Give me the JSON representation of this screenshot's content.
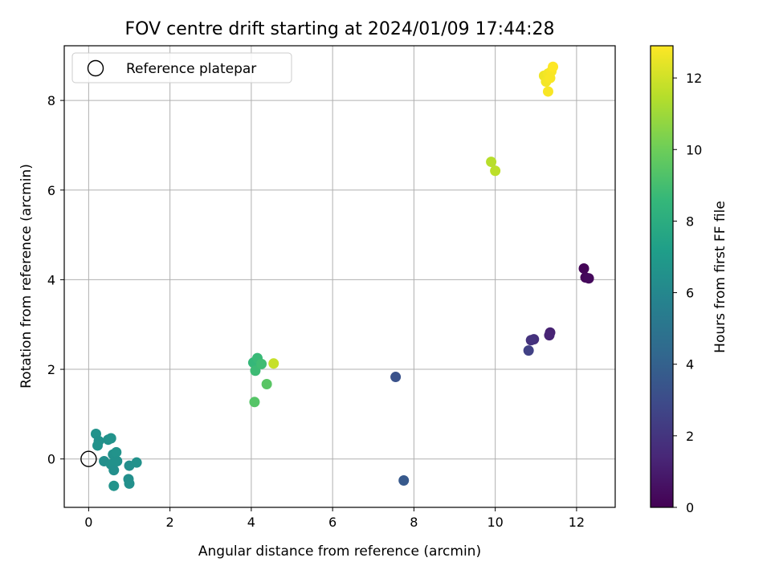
{
  "chart_data": {
    "type": "scatter",
    "title": "FOV centre drift starting at 2024/01/09 17:44:28",
    "xlabel": "Angular distance from reference (arcmin)",
    "ylabel": "Rotation from reference (arcmin)",
    "xlim": [
      -0.6,
      12.95
    ],
    "ylim": [
      -1.08,
      9.22
    ],
    "xticks": [
      0,
      2,
      4,
      6,
      8,
      10,
      12
    ],
    "yticks": [
      0,
      2,
      4,
      6,
      8
    ],
    "grid": true,
    "colorbar": {
      "label": "Hours from first FF file",
      "colormap": "viridis",
      "range": [
        0,
        12.9
      ],
      "ticks": [
        0,
        2,
        4,
        6,
        8,
        10,
        12
      ]
    },
    "legend": {
      "placement": "top-left",
      "entries": [
        {
          "label": "Reference platepar",
          "marker": "open-circle"
        }
      ]
    },
    "reference_point": {
      "x": 0,
      "y": 0
    },
    "points": [
      {
        "x": 12.18,
        "y": 4.25,
        "hours": 0.1
      },
      {
        "x": 12.22,
        "y": 4.05,
        "hours": 0.2
      },
      {
        "x": 12.3,
        "y": 4.03,
        "hours": 0.3
      },
      {
        "x": 11.35,
        "y": 2.82,
        "hours": 1.2
      },
      {
        "x": 11.33,
        "y": 2.76,
        "hours": 1.3
      },
      {
        "x": 10.95,
        "y": 2.67,
        "hours": 1.8
      },
      {
        "x": 10.88,
        "y": 2.65,
        "hours": 1.9
      },
      {
        "x": 10.82,
        "y": 2.42,
        "hours": 2.5
      },
      {
        "x": 7.55,
        "y": 1.83,
        "hours": 3.3
      },
      {
        "x": 7.75,
        "y": -0.48,
        "hours": 3.6
      },
      {
        "x": 0.18,
        "y": 0.56,
        "hours": 6.6
      },
      {
        "x": 0.25,
        "y": 0.4,
        "hours": 6.5
      },
      {
        "x": 0.22,
        "y": 0.3,
        "hours": 6.55
      },
      {
        "x": 0.48,
        "y": 0.43,
        "hours": 6.5
      },
      {
        "x": 0.55,
        "y": 0.46,
        "hours": 6.6
      },
      {
        "x": 0.38,
        "y": -0.05,
        "hours": 6.4
      },
      {
        "x": 0.55,
        "y": -0.12,
        "hours": 6.5
      },
      {
        "x": 0.6,
        "y": 0.1,
        "hours": 6.5
      },
      {
        "x": 0.68,
        "y": 0.15,
        "hours": 6.6
      },
      {
        "x": 0.62,
        "y": -0.25,
        "hours": 6.4
      },
      {
        "x": 0.7,
        "y": -0.05,
        "hours": 6.5
      },
      {
        "x": 0.62,
        "y": -0.6,
        "hours": 6.6
      },
      {
        "x": 1.0,
        "y": -0.15,
        "hours": 6.4
      },
      {
        "x": 0.98,
        "y": -0.45,
        "hours": 6.4
      },
      {
        "x": 1.0,
        "y": -0.55,
        "hours": 6.45
      },
      {
        "x": 1.18,
        "y": -0.08,
        "hours": 6.5
      },
      {
        "x": 4.05,
        "y": 2.15,
        "hours": 8.6
      },
      {
        "x": 4.15,
        "y": 2.25,
        "hours": 8.7
      },
      {
        "x": 4.1,
        "y": 1.97,
        "hours": 8.8
      },
      {
        "x": 4.25,
        "y": 2.12,
        "hours": 8.9
      },
      {
        "x": 4.08,
        "y": 1.27,
        "hours": 9.4
      },
      {
        "x": 4.38,
        "y": 1.67,
        "hours": 9.5
      },
      {
        "x": 4.55,
        "y": 2.13,
        "hours": 11.8
      },
      {
        "x": 9.9,
        "y": 6.63,
        "hours": 11.5
      },
      {
        "x": 10.0,
        "y": 6.43,
        "hours": 11.6
      },
      {
        "x": 11.2,
        "y": 8.55,
        "hours": 12.6
      },
      {
        "x": 11.25,
        "y": 8.42,
        "hours": 12.7
      },
      {
        "x": 11.3,
        "y": 8.6,
        "hours": 12.7
      },
      {
        "x": 11.35,
        "y": 8.5,
        "hours": 12.8
      },
      {
        "x": 11.38,
        "y": 8.65,
        "hours": 12.8
      },
      {
        "x": 11.42,
        "y": 8.75,
        "hours": 12.9
      },
      {
        "x": 11.3,
        "y": 8.2,
        "hours": 12.8
      }
    ]
  }
}
